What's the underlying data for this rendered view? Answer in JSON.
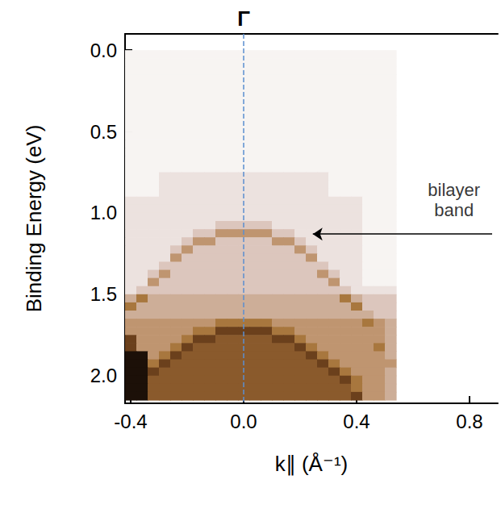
{
  "chart_data": {
    "type": "heatmap",
    "x_label": "k∥ (Å⁻¹)",
    "y_label": "Binding Energy (eV)",
    "grid": false,
    "xlim": [
      -0.42,
      0.9
    ],
    "xticks": [
      -0.4,
      {
        "value": 0,
        "label": "0.0"
      },
      0.4,
      0.8
    ],
    "ylim": [
      -0.1,
      2.17
    ],
    "yticks": [
      {
        "value": 0,
        "label": "0.0"
      },
      0.5,
      {
        "value": 1,
        "label": "1.0"
      },
      1.5,
      {
        "value": 2,
        "label": "2.0"
      }
    ],
    "annotations": [
      {
        "text": "Γ",
        "x": 0
      },
      {
        "text": "bilayer band",
        "x": 0.745,
        "y": 0.92,
        "arrow_from": [
          0.88,
          1.13
        ],
        "arrow_to": [
          0.245,
          1.13
        ]
      }
    ],
    "x": [
      -0.4,
      -0.36,
      -0.32,
      -0.28,
      -0.24,
      -0.2,
      -0.16,
      -0.12,
      -0.08,
      -0.04,
      0.0,
      0.04,
      0.08,
      0.12,
      0.16,
      0.2,
      0.24,
      0.28,
      0.32,
      0.36,
      0.4,
      0.44,
      0.48,
      0.52
    ],
    "y": [
      0.025,
      0.075,
      0.125,
      0.175,
      0.225,
      0.275,
      0.325,
      0.375,
      0.425,
      0.475,
      0.525,
      0.575,
      0.625,
      0.675,
      0.725,
      0.775,
      0.825,
      0.875,
      0.925,
      0.975,
      1.025,
      1.075,
      1.125,
      1.175,
      1.225,
      1.275,
      1.325,
      1.375,
      1.425,
      1.475,
      1.525,
      1.575,
      1.625,
      1.675,
      1.725,
      1.775,
      1.825,
      1.875,
      1.925,
      1.975,
      2.025,
      2.075,
      2.125
    ],
    "cells": [
      [
        0,
        0,
        0,
        0,
        0,
        0,
        0,
        0,
        0,
        0,
        0,
        0,
        0,
        0,
        0,
        0,
        0,
        0,
        0,
        0,
        0,
        0,
        0,
        0
      ],
      [
        0,
        0,
        0,
        0,
        0,
        0,
        0,
        0,
        0,
        0,
        0,
        0,
        0,
        0,
        0,
        0,
        0,
        0,
        0,
        0,
        0,
        0,
        0,
        0
      ],
      [
        0,
        0,
        0,
        0,
        0,
        0,
        0,
        0,
        0,
        0,
        0,
        0,
        0,
        0,
        0,
        0,
        0,
        0,
        0,
        0,
        0,
        0,
        0,
        0
      ],
      [
        0,
        0,
        0,
        0,
        0,
        0,
        0,
        0,
        0,
        0,
        0,
        0,
        0,
        0,
        0,
        0,
        0,
        0,
        0,
        0,
        0,
        0,
        0,
        0
      ],
      [
        0,
        0,
        0,
        0,
        0,
        0,
        0,
        0,
        0,
        0,
        0,
        0,
        0,
        0,
        0,
        0,
        0,
        0,
        0,
        0,
        0,
        0,
        0,
        0
      ],
      [
        0,
        0,
        0,
        0,
        0,
        0,
        0,
        0,
        0,
        0,
        0,
        0,
        0,
        0,
        0,
        0,
        0,
        0,
        0,
        0,
        0,
        0,
        0,
        0
      ],
      [
        0,
        0,
        0,
        0,
        0,
        0,
        0,
        0,
        0,
        0,
        0,
        0,
        0,
        0,
        0,
        0,
        0,
        0,
        0,
        0,
        0,
        0,
        0,
        0
      ],
      [
        0,
        0,
        0,
        0,
        0,
        0,
        0,
        0,
        0,
        0,
        0,
        0,
        0,
        0,
        0,
        0,
        0,
        0,
        0,
        0,
        0,
        0,
        0,
        0
      ],
      [
        0,
        0,
        0,
        0,
        0,
        0,
        0,
        0,
        0,
        0,
        0,
        0,
        0,
        0,
        0,
        0,
        0,
        0,
        0,
        0,
        0,
        0,
        0,
        0
      ],
      [
        0,
        0,
        0,
        0,
        0,
        0,
        0,
        0,
        0,
        0,
        0,
        0,
        0,
        0,
        0,
        0,
        0,
        0,
        0,
        0,
        0,
        0,
        0,
        0
      ],
      [
        0,
        0,
        0,
        0,
        0,
        0,
        0,
        0,
        0,
        0,
        0,
        0,
        0,
        0,
        0,
        0,
        0,
        0,
        0,
        0,
        0,
        0,
        0,
        0
      ],
      [
        0,
        0,
        0,
        0,
        0,
        0,
        0,
        0,
        0,
        0,
        0,
        0,
        0,
        0,
        0,
        0,
        0,
        0,
        0,
        0,
        0,
        0,
        0,
        0
      ],
      [
        0,
        0,
        0,
        0,
        0,
        0,
        0,
        0,
        0,
        0,
        0,
        0,
        0,
        0,
        0,
        0,
        0,
        0,
        0,
        0,
        0,
        0,
        0,
        0
      ],
      [
        0,
        0,
        0,
        0,
        0,
        0,
        0,
        0,
        0,
        0,
        0,
        0,
        0,
        0,
        0,
        0,
        0,
        0,
        0,
        0,
        0,
        0,
        0,
        0
      ],
      [
        0,
        0,
        0,
        0,
        0,
        0,
        0,
        0,
        0,
        0,
        0,
        0,
        0,
        0,
        0,
        0,
        0,
        0,
        0,
        0,
        0,
        0,
        0,
        0
      ],
      [
        0,
        0,
        0,
        1,
        1,
        1,
        1,
        1,
        1,
        1,
        1,
        1,
        1,
        1,
        1,
        1,
        1,
        1,
        0,
        0,
        0,
        0,
        0,
        0
      ],
      [
        0,
        0,
        0,
        1,
        1,
        1,
        1,
        1,
        1,
        1,
        1,
        1,
        1,
        1,
        1,
        1,
        1,
        1,
        0,
        0,
        0,
        0,
        0,
        0
      ],
      [
        0,
        0,
        0,
        1,
        1,
        1,
        1,
        1,
        1,
        1,
        1,
        1,
        1,
        1,
        1,
        1,
        1,
        1,
        0,
        0,
        0,
        0,
        0,
        0
      ],
      [
        1,
        1,
        1,
        1,
        1,
        1,
        1,
        1,
        1,
        1,
        1,
        1,
        1,
        1,
        1,
        1,
        1,
        1,
        1,
        1,
        1,
        0,
        0,
        0
      ],
      [
        1,
        1,
        1,
        1,
        1,
        1,
        1,
        1,
        1,
        1,
        1,
        1,
        1,
        1,
        1,
        1,
        1,
        1,
        1,
        1,
        1,
        0,
        0,
        0
      ],
      [
        1,
        1,
        1,
        1,
        1,
        1,
        1,
        1,
        1,
        1,
        1,
        1,
        1,
        1,
        1,
        1,
        1,
        1,
        1,
        1,
        1,
        0,
        0,
        0
      ],
      [
        1,
        1,
        1,
        1,
        1,
        1,
        1,
        1,
        2,
        2,
        2,
        2,
        2,
        1,
        1,
        1,
        1,
        1,
        1,
        1,
        1,
        0,
        0,
        0
      ],
      [
        1,
        1,
        1,
        1,
        1,
        1,
        2,
        2,
        4,
        4,
        4,
        4,
        4,
        2,
        2,
        1,
        1,
        1,
        1,
        1,
        1,
        0,
        0,
        0
      ],
      [
        1,
        1,
        1,
        1,
        1,
        2,
        4,
        4,
        2,
        2,
        2,
        2,
        2,
        4,
        4,
        2,
        1,
        1,
        1,
        1,
        1,
        0,
        0,
        0
      ],
      [
        1,
        1,
        1,
        1,
        2,
        4,
        2,
        2,
        2,
        2,
        2,
        2,
        2,
        2,
        2,
        4,
        2,
        1,
        1,
        1,
        1,
        0,
        0,
        0
      ],
      [
        1,
        1,
        1,
        1,
        4,
        2,
        2,
        2,
        2,
        2,
        2,
        2,
        2,
        2,
        2,
        2,
        4,
        1,
        1,
        1,
        1,
        0,
        0,
        0
      ],
      [
        1,
        1,
        1,
        2,
        2,
        2,
        2,
        2,
        2,
        2,
        2,
        2,
        2,
        2,
        2,
        2,
        2,
        2,
        1,
        1,
        1,
        0,
        0,
        0
      ],
      [
        1,
        1,
        2,
        4,
        2,
        2,
        2,
        2,
        2,
        2,
        2,
        2,
        2,
        2,
        2,
        2,
        2,
        4,
        2,
        1,
        1,
        0,
        0,
        0
      ],
      [
        1,
        1,
        4,
        2,
        2,
        2,
        2,
        2,
        2,
        2,
        2,
        2,
        2,
        2,
        2,
        2,
        2,
        2,
        4,
        1,
        1,
        0,
        0,
        0
      ],
      [
        1,
        2,
        2,
        2,
        2,
        2,
        2,
        2,
        2,
        2,
        2,
        2,
        2,
        2,
        2,
        2,
        2,
        2,
        2,
        2,
        1,
        1,
        1,
        1
      ],
      [
        3,
        5,
        3,
        3,
        3,
        3,
        3,
        3,
        3,
        3,
        3,
        3,
        3,
        3,
        3,
        3,
        3,
        3,
        3,
        5,
        3,
        2,
        2,
        2
      ],
      [
        5,
        3,
        3,
        3,
        3,
        3,
        3,
        3,
        3,
        3,
        3,
        3,
        3,
        3,
        3,
        3,
        3,
        3,
        3,
        3,
        5,
        2,
        2,
        2
      ],
      [
        3,
        3,
        3,
        3,
        3,
        3,
        3,
        3,
        3,
        3,
        3,
        3,
        3,
        3,
        3,
        3,
        3,
        3,
        3,
        3,
        3,
        3,
        2,
        2
      ],
      [
        4,
        4,
        4,
        4,
        4,
        4,
        4,
        4,
        5,
        5,
        5,
        5,
        5,
        4,
        4,
        4,
        4,
        4,
        4,
        4,
        4,
        5,
        4,
        3
      ],
      [
        4,
        4,
        4,
        4,
        4,
        4,
        5,
        5,
        7,
        7,
        7,
        7,
        7,
        5,
        5,
        4,
        4,
        4,
        4,
        4,
        4,
        4,
        4,
        3
      ],
      [
        7,
        4,
        4,
        4,
        4,
        5,
        7,
        7,
        6,
        6,
        6,
        6,
        6,
        7,
        7,
        5,
        4,
        4,
        4,
        4,
        4,
        4,
        4,
        3
      ],
      [
        7,
        4,
        4,
        4,
        5,
        7,
        6,
        6,
        6,
        6,
        6,
        6,
        6,
        6,
        6,
        7,
        5,
        4,
        4,
        4,
        4,
        4,
        5,
        3
      ],
      [
        9,
        9,
        4,
        5,
        7,
        6,
        6,
        6,
        6,
        6,
        6,
        6,
        6,
        6,
        6,
        6,
        7,
        5,
        4,
        4,
        4,
        4,
        4,
        3
      ],
      [
        9,
        9,
        5,
        7,
        6,
        6,
        6,
        6,
        6,
        6,
        6,
        6,
        6,
        6,
        6,
        6,
        6,
        7,
        5,
        4,
        4,
        4,
        4,
        4
      ],
      [
        9,
        9,
        7,
        6,
        6,
        6,
        6,
        6,
        6,
        6,
        6,
        6,
        6,
        6,
        6,
        6,
        6,
        6,
        7,
        5,
        4,
        4,
        4,
        3
      ],
      [
        9,
        9,
        6,
        6,
        6,
        6,
        6,
        6,
        6,
        6,
        6,
        6,
        6,
        6,
        6,
        6,
        6,
        6,
        6,
        7,
        5,
        4,
        4,
        3
      ],
      [
        9,
        9,
        6,
        6,
        6,
        6,
        6,
        6,
        6,
        6,
        6,
        6,
        6,
        6,
        6,
        6,
        6,
        6,
        6,
        6,
        5,
        4,
        4,
        3
      ],
      [
        9,
        9,
        6,
        6,
        6,
        6,
        6,
        6,
        6,
        6,
        6,
        6,
        6,
        6,
        6,
        6,
        6,
        6,
        6,
        6,
        7,
        4,
        4,
        3
      ]
    ]
  }
}
